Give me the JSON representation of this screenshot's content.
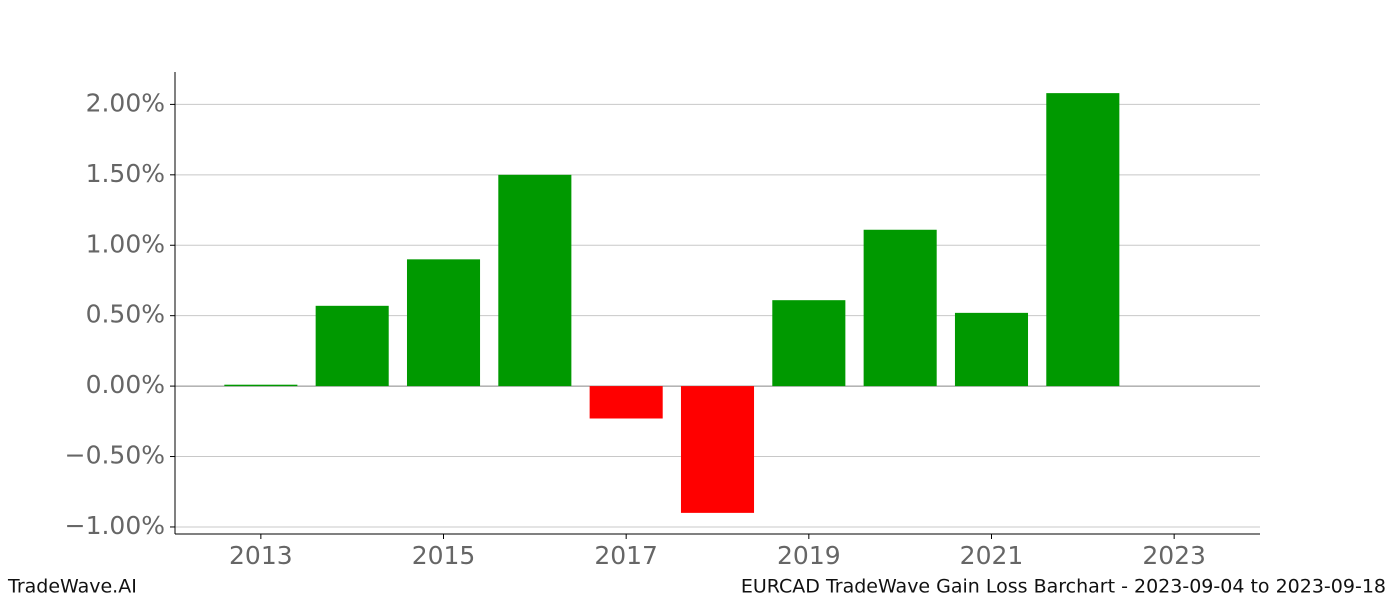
{
  "chart_data": {
    "type": "bar",
    "x": [
      2013,
      2014,
      2015,
      2016,
      2017,
      2018,
      2019,
      2020,
      2021,
      2022
    ],
    "values": [
      0.01,
      0.57,
      0.9,
      1.5,
      -0.23,
      -0.9,
      0.61,
      1.11,
      0.52,
      2.08
    ],
    "positive_color": "#009900",
    "negative_color": "#ff0000",
    "xlim": [
      2012.06,
      2023.94
    ],
    "xticks": [
      2013,
      2015,
      2017,
      2019,
      2021,
      2023
    ],
    "ylim": [
      -1.05,
      2.23
    ],
    "yticks": [
      {
        "value": -1,
        "label": "−1.00%"
      },
      {
        "value": -0.5,
        "label": "−0.50%"
      },
      {
        "value": 0,
        "label": "0.00%"
      },
      {
        "value": 0.5,
        "label": "0.50%"
      },
      {
        "value": 1,
        "label": "1.00%"
      },
      {
        "value": 1.5,
        "label": "1.50%"
      },
      {
        "value": 2,
        "label": "2.00%"
      }
    ],
    "grid": true,
    "footer_left": "TradeWave.AI",
    "footer_right": "EURCAD TradeWave Gain Loss Barchart - 2023-09-04 to 2023-09-18"
  }
}
